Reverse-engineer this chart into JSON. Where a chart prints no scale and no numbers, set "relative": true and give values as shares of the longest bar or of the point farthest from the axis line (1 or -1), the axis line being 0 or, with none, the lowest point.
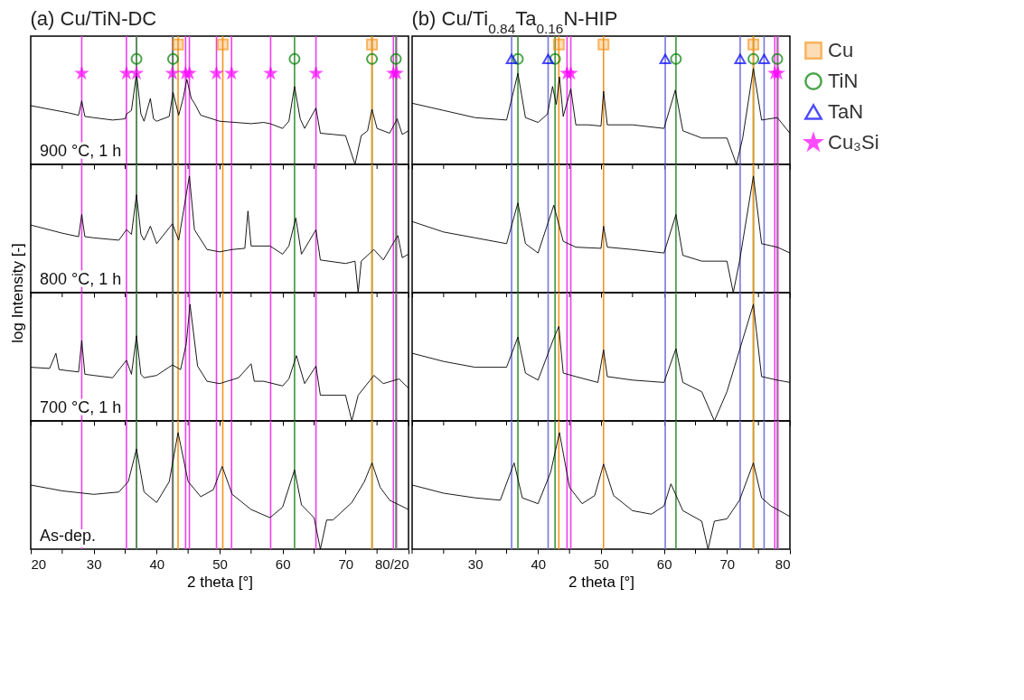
{
  "chart_data": [
    {
      "type": "line",
      "title": "(a) Cu/TiN-DC",
      "relative": true,
      "xlim": [
        20,
        80
      ],
      "xticks": [
        20,
        {
          "value": 25,
          "label": null
        },
        30,
        {
          "value": 35,
          "label": null
        },
        40,
        {
          "value": 45,
          "label": null
        },
        50,
        {
          "value": 55,
          "label": null
        },
        60,
        {
          "value": 65,
          "label": null
        },
        70,
        {
          "value": 75,
          "label": null
        },
        80
      ],
      "tick_labels": false,
      "annotations": [
        "900 °C, 1 h"
      ],
      "ref_lines": [
        {
          "axis": "x",
          "value": 28.1,
          "color": "#ee3fee"
        },
        {
          "axis": "x",
          "value": 35.2,
          "color": "#ee3fee"
        },
        {
          "axis": "x",
          "value": 36.8,
          "color": "#ee3fee"
        },
        {
          "axis": "x",
          "value": 42.5,
          "color": "#ee3fee"
        },
        {
          "axis": "x",
          "value": 44.6,
          "color": "#ee3fee"
        },
        {
          "axis": "x",
          "value": 45.2,
          "color": "#ee3fee"
        },
        {
          "axis": "x",
          "value": 49.5,
          "color": "#ee3fee"
        },
        {
          "axis": "x",
          "value": 51.9,
          "color": "#ee3fee"
        },
        {
          "axis": "x",
          "value": 58.1,
          "color": "#ee3fee"
        },
        {
          "axis": "x",
          "value": 65.3,
          "color": "#ee3fee"
        },
        {
          "axis": "x",
          "value": 77.6,
          "color": "#ee3fee"
        },
        {
          "axis": "x",
          "value": 78.1,
          "color": "#ee3fee"
        },
        {
          "axis": "x",
          "value": 36.8,
          "color": "#3c963c"
        },
        {
          "axis": "x",
          "value": 42.6,
          "color": "#3c963c"
        },
        {
          "axis": "x",
          "value": 61.9,
          "color": "#3c963c"
        },
        {
          "axis": "x",
          "value": 74.2,
          "color": "#3c963c"
        },
        {
          "axis": "x",
          "value": 78.0,
          "color": "#3c963c"
        },
        {
          "axis": "x",
          "value": 43.4,
          "color": "#f7941d"
        },
        {
          "axis": "x",
          "value": 50.5,
          "color": "#f7941d"
        },
        {
          "axis": "x",
          "value": 74.2,
          "color": "#f7941d"
        }
      ],
      "series": [
        {
          "color": "#000000",
          "x": [
            20,
            23,
            26,
            27.6,
            28.1,
            28.6,
            30,
            33,
            35,
            35.2,
            36,
            36.8,
            37.5,
            38,
            39,
            39.5,
            40,
            42,
            42.6,
            43.5,
            44.2,
            44.8,
            45.5,
            46,
            47,
            50,
            55,
            57,
            58,
            60,
            61,
            61.9,
            62.8,
            63.5,
            65.3,
            66,
            68,
            70,
            71.5,
            72.5,
            73.5,
            74.2,
            75,
            77,
            78.2,
            79,
            80
          ],
          "values": [
            0.49,
            0.46,
            0.43,
            0.41,
            0.53,
            0.4,
            0.39,
            0.37,
            0.38,
            0.42,
            0.45,
            0.76,
            0.42,
            0.36,
            0.55,
            0.38,
            0.36,
            0.4,
            0.6,
            0.41,
            0.55,
            0.71,
            0.55,
            0.51,
            0.41,
            0.36,
            0.34,
            0.35,
            0.34,
            0.3,
            0.36,
            0.65,
            0.38,
            0.3,
            0.47,
            0.26,
            0.25,
            0.24,
            0,
            0.24,
            0.28,
            0.46,
            0.3,
            0.26,
            0.38,
            0.25,
            0.28
          ]
        },
        {
          "type": "scatter",
          "color": "#f7941d",
          "marker": "square",
          "x": [
            43.4,
            50.5,
            74.2
          ],
          "values": [
            1,
            1,
            1
          ]
        },
        {
          "type": "scatter",
          "color": "#008000",
          "marker": "circle",
          "x": [
            36.8,
            42.6,
            61.9,
            74.2,
            78.0
          ],
          "values": [
            0.88,
            0.88,
            0.88,
            0.88,
            0.88
          ]
        },
        {
          "type": "scatter",
          "color": "#ff00ff",
          "marker": "star",
          "x": [
            28.1,
            35.2,
            36.8,
            42.5,
            44.6,
            45.2,
            49.5,
            51.9,
            58.1,
            65.3,
            77.6,
            78.1
          ],
          "values": [
            0.76,
            0.76,
            0.76,
            0.76,
            0.76,
            0.76,
            0.76,
            0.76,
            0.76,
            0.76,
            0.76,
            0.76
          ]
        }
      ]
    },
    {
      "type": "line",
      "relative": true,
      "ylabel": "log Intensity [-]",
      "xlim": [
        20,
        80
      ],
      "xticks": [
        20,
        {
          "value": 25,
          "label": null
        },
        30,
        {
          "value": 35,
          "label": null
        },
        40,
        {
          "value": 45,
          "label": null
        },
        50,
        {
          "value": 55,
          "label": null
        },
        60,
        {
          "value": 65,
          "label": null
        },
        70,
        {
          "value": 75,
          "label": null
        },
        80
      ],
      "tick_labels": false,
      "annotations": [
        "800 °C, 1 h"
      ],
      "ref_lines": [
        {
          "axis": "x",
          "value": 28.1,
          "color": "#ee3fee"
        },
        {
          "axis": "x",
          "value": 35.2,
          "color": "#ee3fee"
        },
        {
          "axis": "x",
          "value": 36.8,
          "color": "#ee3fee"
        },
        {
          "axis": "x",
          "value": 42.5,
          "color": "#ee3fee"
        },
        {
          "axis": "x",
          "value": 44.6,
          "color": "#ee3fee"
        },
        {
          "axis": "x",
          "value": 45.2,
          "color": "#ee3fee"
        },
        {
          "axis": "x",
          "value": 49.5,
          "color": "#ee3fee"
        },
        {
          "axis": "x",
          "value": 51.9,
          "color": "#ee3fee"
        },
        {
          "axis": "x",
          "value": 58.1,
          "color": "#ee3fee"
        },
        {
          "axis": "x",
          "value": 65.3,
          "color": "#ee3fee"
        },
        {
          "axis": "x",
          "value": 77.6,
          "color": "#ee3fee"
        },
        {
          "axis": "x",
          "value": 78.1,
          "color": "#ee3fee"
        },
        {
          "axis": "x",
          "value": 36.8,
          "color": "#3c963c"
        },
        {
          "axis": "x",
          "value": 42.6,
          "color": "#3c963c"
        },
        {
          "axis": "x",
          "value": 61.9,
          "color": "#3c963c"
        },
        {
          "axis": "x",
          "value": 74.2,
          "color": "#3c963c"
        },
        {
          "axis": "x",
          "value": 78.0,
          "color": "#3c963c"
        },
        {
          "axis": "x",
          "value": 43.4,
          "color": "#f7941d"
        },
        {
          "axis": "x",
          "value": 50.5,
          "color": "#f7941d"
        },
        {
          "axis": "x",
          "value": 74.2,
          "color": "#f7941d"
        }
      ],
      "series": [
        {
          "color": "#000000",
          "x": [
            20,
            25,
            27.6,
            28.1,
            28.6,
            30,
            34,
            35.2,
            36,
            36.8,
            37.5,
            38,
            39,
            40,
            42.5,
            43.5,
            44.6,
            45.2,
            46,
            48,
            50,
            52,
            54,
            54.5,
            55,
            58,
            60,
            61,
            62.1,
            63,
            65.3,
            66,
            70,
            71.5,
            72,
            72.5,
            74.5,
            76,
            78.3,
            79,
            80
          ],
          "values": [
            0.58,
            0.51,
            0.48,
            0.67,
            0.48,
            0.47,
            0.45,
            0.54,
            0.5,
            0.84,
            0.5,
            0.45,
            0.57,
            0.42,
            0.59,
            0.45,
            0.81,
            1,
            0.54,
            0.37,
            0.35,
            0.37,
            0.38,
            0.7,
            0.4,
            0.4,
            0.33,
            0.4,
            0.64,
            0.33,
            0.54,
            0.28,
            0.25,
            0.27,
            0,
            0.27,
            0.37,
            0.28,
            0.49,
            0.3,
            0.33
          ]
        }
      ]
    },
    {
      "type": "line",
      "relative": true,
      "xlim": [
        20,
        80
      ],
      "xticks": [
        20,
        {
          "value": 25,
          "label": null
        },
        30,
        {
          "value": 35,
          "label": null
        },
        40,
        {
          "value": 45,
          "label": null
        },
        50,
        {
          "value": 55,
          "label": null
        },
        60,
        {
          "value": 65,
          "label": null
        },
        70,
        {
          "value": 75,
          "label": null
        },
        80
      ],
      "tick_labels": false,
      "annotations": [
        "700 °C, 1 h"
      ],
      "ref_lines": [
        {
          "axis": "x",
          "value": 28.1,
          "color": "#ee3fee"
        },
        {
          "axis": "x",
          "value": 35.2,
          "color": "#ee3fee"
        },
        {
          "axis": "x",
          "value": 36.8,
          "color": "#ee3fee"
        },
        {
          "axis": "x",
          "value": 42.5,
          "color": "#ee3fee"
        },
        {
          "axis": "x",
          "value": 44.6,
          "color": "#ee3fee"
        },
        {
          "axis": "x",
          "value": 45.2,
          "color": "#ee3fee"
        },
        {
          "axis": "x",
          "value": 49.5,
          "color": "#ee3fee"
        },
        {
          "axis": "x",
          "value": 51.9,
          "color": "#ee3fee"
        },
        {
          "axis": "x",
          "value": 58.1,
          "color": "#ee3fee"
        },
        {
          "axis": "x",
          "value": 65.3,
          "color": "#ee3fee"
        },
        {
          "axis": "x",
          "value": 77.6,
          "color": "#ee3fee"
        },
        {
          "axis": "x",
          "value": 78.1,
          "color": "#ee3fee"
        },
        {
          "axis": "x",
          "value": 36.8,
          "color": "#3c963c"
        },
        {
          "axis": "x",
          "value": 42.6,
          "color": "#3c963c"
        },
        {
          "axis": "x",
          "value": 61.9,
          "color": "#3c963c"
        },
        {
          "axis": "x",
          "value": 74.2,
          "color": "#3c963c"
        },
        {
          "axis": "x",
          "value": 78.0,
          "color": "#3c963c"
        },
        {
          "axis": "x",
          "value": 43.4,
          "color": "#f7941d"
        },
        {
          "axis": "x",
          "value": 50.5,
          "color": "#f7941d"
        },
        {
          "axis": "x",
          "value": 74.2,
          "color": "#f7941d"
        }
      ],
      "series": [
        {
          "color": "#000000",
          "x": [
            20,
            23,
            24,
            24.5,
            26,
            27.6,
            28.1,
            28.6,
            30,
            33,
            35.2,
            36,
            36.8,
            37.5,
            38,
            40,
            42.5,
            43.8,
            44.7,
            45.3,
            46.5,
            48,
            50,
            53,
            55,
            55.5,
            57,
            60,
            61,
            62.2,
            63.5,
            65.3,
            66,
            70,
            71,
            72,
            74.5,
            76,
            78.5,
            80
          ],
          "values": [
            0.46,
            0.45,
            0.58,
            0.44,
            0.43,
            0.42,
            0.69,
            0.4,
            0.39,
            0.37,
            0.52,
            0.4,
            0.73,
            0.4,
            0.37,
            0.39,
            0.48,
            0.44,
            0.66,
            1,
            0.47,
            0.34,
            0.32,
            0.37,
            0.49,
            0.34,
            0.34,
            0.3,
            0.36,
            0.56,
            0.32,
            0.47,
            0.22,
            0.22,
            0,
            0.22,
            0.39,
            0.32,
            0.36,
            0.28
          ]
        }
      ]
    },
    {
      "type": "line",
      "relative": true,
      "xlabel": "2 theta [°]",
      "xlim": [
        20,
        80
      ],
      "xticks": [
        20,
        {
          "value": 25,
          "label": null
        },
        30,
        {
          "value": 35,
          "label": null
        },
        40,
        {
          "value": 45,
          "label": null
        },
        50,
        {
          "value": 55,
          "label": null
        },
        60,
        {
          "value": 65,
          "label": null
        },
        70,
        {
          "value": 75,
          "label": null
        },
        {
          "value": 80,
          "label": "80/20"
        }
      ],
      "tick_labels": "x",
      "annotations": [
        "As-dep."
      ],
      "ref_lines": [
        {
          "axis": "x",
          "value": 28.1,
          "color": "#ee3fee"
        },
        {
          "axis": "x",
          "value": 35.2,
          "color": "#ee3fee"
        },
        {
          "axis": "x",
          "value": 36.8,
          "color": "#ee3fee"
        },
        {
          "axis": "x",
          "value": 42.5,
          "color": "#ee3fee"
        },
        {
          "axis": "x",
          "value": 44.6,
          "color": "#ee3fee"
        },
        {
          "axis": "x",
          "value": 45.2,
          "color": "#ee3fee"
        },
        {
          "axis": "x",
          "value": 49.5,
          "color": "#ee3fee"
        },
        {
          "axis": "x",
          "value": 51.9,
          "color": "#ee3fee"
        },
        {
          "axis": "x",
          "value": 58.1,
          "color": "#ee3fee"
        },
        {
          "axis": "x",
          "value": 65.3,
          "color": "#ee3fee"
        },
        {
          "axis": "x",
          "value": 77.6,
          "color": "#ee3fee"
        },
        {
          "axis": "x",
          "value": 78.1,
          "color": "#ee3fee"
        },
        {
          "axis": "x",
          "value": 36.8,
          "color": "#3c963c"
        },
        {
          "axis": "x",
          "value": 42.6,
          "color": "#3c963c"
        },
        {
          "axis": "x",
          "value": 61.9,
          "color": "#3c963c"
        },
        {
          "axis": "x",
          "value": 74.2,
          "color": "#3c963c"
        },
        {
          "axis": "x",
          "value": 78.0,
          "color": "#3c963c"
        },
        {
          "axis": "x",
          "value": 43.4,
          "color": "#f7941d"
        },
        {
          "axis": "x",
          "value": 50.5,
          "color": "#f7941d"
        },
        {
          "axis": "x",
          "value": 74.2,
          "color": "#f7941d"
        }
      ],
      "series": [
        {
          "color": "#000000",
          "x": [
            20,
            25,
            30,
            34,
            35.5,
            36.8,
            38,
            40,
            42,
            43.4,
            45,
            47,
            49,
            50.4,
            52,
            55,
            58,
            60,
            61.9,
            63,
            65,
            66,
            67,
            68,
            71,
            73,
            74.2,
            75.5,
            77,
            80
          ],
          "values": [
            0.55,
            0.5,
            0.47,
            0.49,
            0.58,
            0.86,
            0.49,
            0.4,
            0.58,
            1,
            0.58,
            0.45,
            0.51,
            0.71,
            0.47,
            0.34,
            0.27,
            0.36,
            0.68,
            0.38,
            0.27,
            0,
            0.25,
            0.25,
            0.4,
            0.58,
            0.74,
            0.53,
            0.42,
            0.34
          ]
        }
      ]
    },
    {
      "type": "line",
      "title": "(b) Cu/Ti$_{0.84}$Ta$_{0.16}$N-HIP",
      "relative": true,
      "legend": "right",
      "xlim": [
        20,
        80
      ],
      "xticks": [
        20,
        {
          "value": 25,
          "label": null
        },
        30,
        {
          "value": 35,
          "label": null
        },
        40,
        {
          "value": 45,
          "label": null
        },
        50,
        {
          "value": 55,
          "label": null
        },
        60,
        {
          "value": 65,
          "label": null
        },
        70,
        {
          "value": 75,
          "label": null
        },
        80
      ],
      "tick_labels": false,
      "ref_lines": [
        {
          "axis": "x",
          "value": 35.8,
          "color": "#7777dd"
        },
        {
          "axis": "x",
          "value": 41.6,
          "color": "#7777dd"
        },
        {
          "axis": "x",
          "value": 60.2,
          "color": "#7777dd"
        },
        {
          "axis": "x",
          "value": 72.1,
          "color": "#7777dd"
        },
        {
          "axis": "x",
          "value": 75.9,
          "color": "#7777dd"
        },
        {
          "axis": "x",
          "value": 36.8,
          "color": "#3c963c"
        },
        {
          "axis": "x",
          "value": 42.7,
          "color": "#3c963c"
        },
        {
          "axis": "x",
          "value": 61.9,
          "color": "#3c963c"
        },
        {
          "axis": "x",
          "value": 74.2,
          "color": "#3c963c"
        },
        {
          "axis": "x",
          "value": 78.0,
          "color": "#3c963c"
        },
        {
          "axis": "x",
          "value": 43.3,
          "color": "#f7941d"
        },
        {
          "axis": "x",
          "value": 50.4,
          "color": "#f7941d"
        },
        {
          "axis": "x",
          "value": 74.2,
          "color": "#f7941d"
        },
        {
          "axis": "x",
          "value": 44.6,
          "color": "#ee3fee"
        },
        {
          "axis": "x",
          "value": 45.2,
          "color": "#ee3fee"
        },
        {
          "axis": "x",
          "value": 77.6,
          "color": "#ee3fee"
        },
        {
          "axis": "x",
          "value": 78.1,
          "color": "#ee3fee"
        }
      ],
      "series": [
        {
          "color": "#000000",
          "x": [
            20,
            25,
            30,
            35,
            36.8,
            38,
            40,
            41.5,
            42.3,
            42.9,
            43.4,
            44,
            45.2,
            46,
            48,
            50,
            50.4,
            51,
            55,
            60,
            61.8,
            63,
            66,
            70,
            71.5,
            72.5,
            74.2,
            75.5,
            78,
            80
          ],
          "values": [
            0.51,
            0.45,
            0.39,
            0.37,
            0.76,
            0.39,
            0.35,
            0.42,
            0.65,
            0.5,
            0.73,
            0.4,
            0.63,
            0.33,
            0.33,
            0.32,
            0.61,
            0.33,
            0.33,
            0.3,
            0.62,
            0.28,
            0.22,
            0.22,
            0,
            0.22,
            0.8,
            0.37,
            0.39,
            0.26
          ]
        },
        {
          "type": "scatter",
          "name": "Cu",
          "color": "#f7941d",
          "marker": "square",
          "x": [
            43.3,
            50.4,
            74.2
          ],
          "values": [
            1,
            1,
            1
          ]
        },
        {
          "type": "scatter",
          "name": "TiN",
          "color": "#008000",
          "marker": "circle",
          "x": [
            36.8,
            42.7,
            61.9,
            74.2,
            78.0
          ],
          "values": [
            0.88,
            0.88,
            0.88,
            0.88,
            0.88
          ]
        },
        {
          "type": "scatter",
          "name": "TaN",
          "color": "#0000ff",
          "marker": "triangle",
          "x": [
            35.8,
            41.6,
            60.2,
            72.1,
            75.9
          ],
          "values": [
            0.88,
            0.88,
            0.88,
            0.88,
            0.88
          ]
        },
        {
          "type": "scatter",
          "name": "Cu₃Si",
          "color": "#ff00ff",
          "marker": "star",
          "x": [
            44.6,
            45.2,
            77.6,
            78.1
          ],
          "values": [
            0.76,
            0.76,
            0.76,
            0.76
          ]
        }
      ]
    },
    {
      "type": "line",
      "relative": true,
      "xlim": [
        20,
        80
      ],
      "xticks": [
        20,
        {
          "value": 25,
          "label": null
        },
        30,
        {
          "value": 35,
          "label": null
        },
        40,
        {
          "value": 45,
          "label": null
        },
        50,
        {
          "value": 55,
          "label": null
        },
        60,
        {
          "value": 65,
          "label": null
        },
        70,
        {
          "value": 75,
          "label": null
        },
        80
      ],
      "tick_labels": false,
      "ref_lines": [
        {
          "axis": "x",
          "value": 35.8,
          "color": "#7777dd"
        },
        {
          "axis": "x",
          "value": 41.6,
          "color": "#7777dd"
        },
        {
          "axis": "x",
          "value": 60.2,
          "color": "#7777dd"
        },
        {
          "axis": "x",
          "value": 72.1,
          "color": "#7777dd"
        },
        {
          "axis": "x",
          "value": 75.9,
          "color": "#7777dd"
        },
        {
          "axis": "x",
          "value": 36.8,
          "color": "#3c963c"
        },
        {
          "axis": "x",
          "value": 42.7,
          "color": "#3c963c"
        },
        {
          "axis": "x",
          "value": 61.9,
          "color": "#3c963c"
        },
        {
          "axis": "x",
          "value": 74.2,
          "color": "#3c963c"
        },
        {
          "axis": "x",
          "value": 78.0,
          "color": "#3c963c"
        },
        {
          "axis": "x",
          "value": 43.3,
          "color": "#f7941d"
        },
        {
          "axis": "x",
          "value": 50.4,
          "color": "#f7941d"
        },
        {
          "axis": "x",
          "value": 74.2,
          "color": "#f7941d"
        },
        {
          "axis": "x",
          "value": 44.6,
          "color": "#ee3fee"
        },
        {
          "axis": "x",
          "value": 45.2,
          "color": "#ee3fee"
        },
        {
          "axis": "x",
          "value": 77.6,
          "color": "#ee3fee"
        },
        {
          "axis": "x",
          "value": 78.1,
          "color": "#ee3fee"
        }
      ],
      "series": [
        {
          "color": "#000000",
          "x": [
            20,
            25,
            30,
            35,
            36.8,
            38,
            40,
            42.5,
            44,
            46,
            50,
            50.4,
            51,
            55,
            60,
            61.9,
            63,
            66,
            70,
            71,
            72,
            74.2,
            75.5,
            78,
            80
          ],
          "values": [
            0.61,
            0.52,
            0.47,
            0.42,
            0.77,
            0.42,
            0.34,
            0.75,
            0.44,
            0.39,
            0.38,
            0.57,
            0.39,
            0.37,
            0.34,
            0.67,
            0.32,
            0.27,
            0.27,
            0,
            0.27,
            1,
            0.42,
            0.39,
            0.34
          ]
        }
      ]
    },
    {
      "type": "line",
      "relative": true,
      "xlim": [
        20,
        80
      ],
      "xticks": [
        20,
        {
          "value": 25,
          "label": null
        },
        30,
        {
          "value": 35,
          "label": null
        },
        40,
        {
          "value": 45,
          "label": null
        },
        50,
        {
          "value": 55,
          "label": null
        },
        60,
        {
          "value": 65,
          "label": null
        },
        70,
        {
          "value": 75,
          "label": null
        },
        80
      ],
      "tick_labels": false,
      "ref_lines": [
        {
          "axis": "x",
          "value": 35.8,
          "color": "#7777dd"
        },
        {
          "axis": "x",
          "value": 41.6,
          "color": "#7777dd"
        },
        {
          "axis": "x",
          "value": 60.2,
          "color": "#7777dd"
        },
        {
          "axis": "x",
          "value": 72.1,
          "color": "#7777dd"
        },
        {
          "axis": "x",
          "value": 75.9,
          "color": "#7777dd"
        },
        {
          "axis": "x",
          "value": 36.8,
          "color": "#3c963c"
        },
        {
          "axis": "x",
          "value": 42.7,
          "color": "#3c963c"
        },
        {
          "axis": "x",
          "value": 61.9,
          "color": "#3c963c"
        },
        {
          "axis": "x",
          "value": 74.2,
          "color": "#3c963c"
        },
        {
          "axis": "x",
          "value": 78.0,
          "color": "#3c963c"
        },
        {
          "axis": "x",
          "value": 43.3,
          "color": "#f7941d"
        },
        {
          "axis": "x",
          "value": 50.4,
          "color": "#f7941d"
        },
        {
          "axis": "x",
          "value": 74.2,
          "color": "#f7941d"
        },
        {
          "axis": "x",
          "value": 44.6,
          "color": "#ee3fee"
        },
        {
          "axis": "x",
          "value": 45.2,
          "color": "#ee3fee"
        },
        {
          "axis": "x",
          "value": 77.6,
          "color": "#ee3fee"
        },
        {
          "axis": "x",
          "value": 78.1,
          "color": "#ee3fee"
        }
      ],
      "series": [
        {
          "color": "#000000",
          "x": [
            20,
            25,
            30,
            35,
            36.8,
            38,
            40,
            42.5,
            43.3,
            44,
            46,
            49.5,
            50.4,
            51,
            55,
            60,
            61.9,
            63,
            66,
            68,
            70,
            74.2,
            75.5,
            78,
            80
          ],
          "values": [
            0.58,
            0.51,
            0.46,
            0.46,
            0.72,
            0.41,
            0.35,
            0.71,
            0.81,
            0.41,
            0.38,
            0.33,
            0.61,
            0.38,
            0.35,
            0.33,
            0.62,
            0.33,
            0.25,
            0,
            0.25,
            1,
            0.38,
            0.35,
            0.33
          ]
        }
      ]
    },
    {
      "type": "line",
      "relative": true,
      "xlabel": "2 theta [°]",
      "xlim": [
        20,
        80
      ],
      "xticks": [
        {
          "value": 20,
          "label": null
        },
        {
          "value": 25,
          "label": null
        },
        30,
        {
          "value": 35,
          "label": null
        },
        40,
        {
          "value": 45,
          "label": null
        },
        50,
        {
          "value": 55,
          "label": null
        },
        60,
        {
          "value": 65,
          "label": null
        },
        70,
        {
          "value": 75,
          "label": null
        },
        80
      ],
      "tick_labels": "x",
      "ref_lines": [
        {
          "axis": "x",
          "value": 35.8,
          "color": "#7777dd"
        },
        {
          "axis": "x",
          "value": 41.6,
          "color": "#7777dd"
        },
        {
          "axis": "x",
          "value": 60.2,
          "color": "#7777dd"
        },
        {
          "axis": "x",
          "value": 72.1,
          "color": "#7777dd"
        },
        {
          "axis": "x",
          "value": 75.9,
          "color": "#7777dd"
        },
        {
          "axis": "x",
          "value": 36.8,
          "color": "#3c963c"
        },
        {
          "axis": "x",
          "value": 42.7,
          "color": "#3c963c"
        },
        {
          "axis": "x",
          "value": 61.9,
          "color": "#3c963c"
        },
        {
          "axis": "x",
          "value": 74.2,
          "color": "#3c963c"
        },
        {
          "axis": "x",
          "value": 78.0,
          "color": "#3c963c"
        },
        {
          "axis": "x",
          "value": 43.3,
          "color": "#f7941d"
        },
        {
          "axis": "x",
          "value": 50.4,
          "color": "#f7941d"
        },
        {
          "axis": "x",
          "value": 74.2,
          "color": "#f7941d"
        },
        {
          "axis": "x",
          "value": 44.6,
          "color": "#ee3fee"
        },
        {
          "axis": "x",
          "value": 45.2,
          "color": "#ee3fee"
        },
        {
          "axis": "x",
          "value": 77.6,
          "color": "#ee3fee"
        },
        {
          "axis": "x",
          "value": 78.1,
          "color": "#ee3fee"
        }
      ],
      "series": [
        {
          "color": "#000000",
          "x": [
            20,
            25,
            30,
            34,
            36.2,
            37.5,
            40,
            42,
            43.4,
            45,
            47,
            49,
            50.4,
            52,
            55,
            58,
            60,
            61.1,
            63,
            66,
            67,
            68,
            70,
            72,
            74.2,
            75.5,
            77,
            80
          ],
          "values": [
            0.55,
            0.48,
            0.44,
            0.42,
            0.74,
            0.44,
            0.39,
            0.66,
            1,
            0.53,
            0.39,
            0.46,
            0.73,
            0.46,
            0.33,
            0.3,
            0.37,
            0.56,
            0.33,
            0.24,
            0,
            0.24,
            0.26,
            0.42,
            0.74,
            0.44,
            0.37,
            0.28
          ]
        }
      ]
    }
  ]
}
